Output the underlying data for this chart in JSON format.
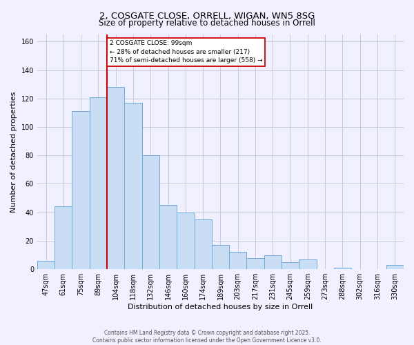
{
  "title": "2, COSGATE CLOSE, ORRELL, WIGAN, WN5 8SG",
  "subtitle": "Size of property relative to detached houses in Orrell",
  "xlabel": "Distribution of detached houses by size in Orrell",
  "ylabel": "Number of detached properties",
  "bar_labels": [
    "47sqm",
    "61sqm",
    "75sqm",
    "89sqm",
    "104sqm",
    "118sqm",
    "132sqm",
    "146sqm",
    "160sqm",
    "174sqm",
    "189sqm",
    "203sqm",
    "217sqm",
    "231sqm",
    "245sqm",
    "259sqm",
    "273sqm",
    "288sqm",
    "302sqm",
    "316sqm",
    "330sqm"
  ],
  "bar_values": [
    6,
    44,
    111,
    121,
    128,
    117,
    80,
    45,
    40,
    35,
    17,
    12,
    8,
    10,
    5,
    7,
    0,
    1,
    0,
    0,
    3
  ],
  "bar_color": "#c9ddf5",
  "bar_edge_color": "#6fa8d8",
  "vline_color": "#cc0000",
  "annotation_text": "2 COSGATE CLOSE: 99sqm\n← 28% of detached houses are smaller (217)\n71% of semi-detached houses are larger (558) →",
  "annotation_box_color": "#ffffff",
  "annotation_box_edge": "#cc0000",
  "ylim": [
    0,
    165
  ],
  "yticks": [
    0,
    20,
    40,
    60,
    80,
    100,
    120,
    140,
    160
  ],
  "footer_line1": "Contains HM Land Registry data © Crown copyright and database right 2025.",
  "footer_line2": "Contains public sector information licensed under the Open Government Licence v3.0.",
  "background_color": "#f0f0ff",
  "grid_color": "#c8c8e0",
  "title_fontsize": 9.5,
  "subtitle_fontsize": 8.5,
  "axis_label_fontsize": 8,
  "tick_fontsize": 7,
  "footer_fontsize": 5.5
}
